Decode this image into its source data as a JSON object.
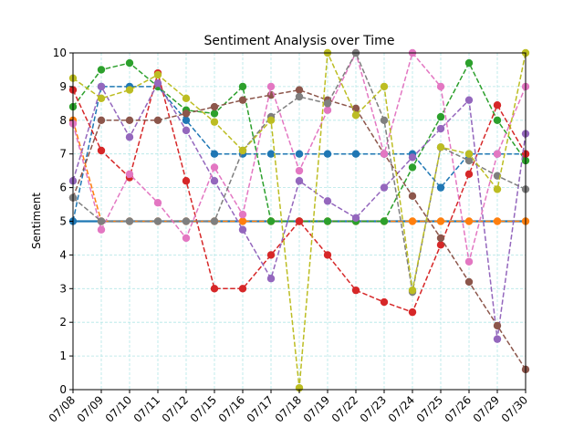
{
  "chart_data": {
    "type": "line",
    "title": "Sentiment Analysis over Time",
    "xlabel": "",
    "ylabel": "Sentiment",
    "ylim": [
      0,
      10
    ],
    "yticks": [
      "0",
      "1",
      "2",
      "3",
      "4",
      "5",
      "6",
      "7",
      "8",
      "9",
      "10"
    ],
    "categories": [
      "07/08",
      "07/09",
      "07/10",
      "07/11",
      "07/12",
      "07/15",
      "07/16",
      "07/17",
      "07/18",
      "07/19",
      "07/22",
      "07/23",
      "07/24",
      "07/25",
      "07/26",
      "07/29",
      "07/30"
    ],
    "grid": true,
    "grid_color": "#b2e6e6",
    "legend": "none",
    "series": [
      {
        "color": "#1f77b4",
        "style": "dashed",
        "marker": true,
        "values": [
          5.0,
          9.0,
          9.0,
          9.0,
          8.0,
          7.0,
          7.0,
          7.0,
          7.0,
          7.0,
          7.0,
          7.0,
          7.0,
          6.0,
          7.0,
          7.0,
          7.0
        ]
      },
      {
        "color": "#1f77b4",
        "style": "solid",
        "marker": false,
        "values": [
          5.0,
          5.0,
          5.0,
          5.0,
          5.0,
          5.0,
          5.0,
          5.0,
          5.0,
          5.0,
          5.0,
          5.0,
          5.0,
          5.0,
          5.0,
          5.0,
          5.0
        ]
      },
      {
        "color": "#ff7f0e",
        "style": "dashed",
        "marker": true,
        "values": [
          8.0,
          5.0,
          5.0,
          5.0,
          5.0,
          5.0,
          5.0,
          5.0,
          5.0,
          5.0,
          5.0,
          5.0,
          5.0,
          5.0,
          5.0,
          5.0,
          5.0
        ]
      },
      {
        "color": "#2ca02c",
        "style": "dashed",
        "marker": true,
        "values": [
          8.4,
          9.5,
          9.7,
          9.0,
          8.3,
          8.2,
          9.0,
          5.0,
          5.0,
          5.0,
          5.0,
          5.0,
          6.6,
          8.1,
          9.7,
          8.0,
          6.8
        ]
      },
      {
        "color": "#d62728",
        "style": "dashed",
        "marker": true,
        "values": [
          8.9,
          7.1,
          6.3,
          9.4,
          6.2,
          3.0,
          3.0,
          4.0,
          5.0,
          4.0,
          2.95,
          2.6,
          2.3,
          4.3,
          6.4,
          8.45,
          7.0
        ]
      },
      {
        "color": "#9467bd",
        "style": "dashed",
        "marker": true,
        "values": [
          6.2,
          9.0,
          7.5,
          9.1,
          7.7,
          6.2,
          4.75,
          3.3,
          6.2,
          5.6,
          5.1,
          6.0,
          6.9,
          7.75,
          8.6,
          1.5,
          7.6
        ]
      },
      {
        "color": "#8c564b",
        "style": "dashed",
        "marker": true,
        "values": [
          5.7,
          8.0,
          8.0,
          8.0,
          8.2,
          8.4,
          8.6,
          8.75,
          8.9,
          8.6,
          8.35,
          7.0,
          5.75,
          4.5,
          3.2,
          1.9,
          0.6
        ]
      },
      {
        "color": "#e377c2",
        "style": "dashed",
        "marker": true,
        "values": [
          7.9,
          4.75,
          6.4,
          5.55,
          4.5,
          6.6,
          5.2,
          9.0,
          6.5,
          8.3,
          10.0,
          7.0,
          10.0,
          9.0,
          3.8,
          7.0,
          9.0
        ]
      },
      {
        "color": "#7f7f7f",
        "style": "dashed",
        "marker": true,
        "values": [
          5.7,
          5.0,
          5.0,
          5.0,
          5.0,
          5.0,
          7.1,
          8.1,
          8.7,
          8.5,
          10.0,
          8.0,
          2.9,
          7.2,
          6.8,
          6.35,
          5.95
        ]
      },
      {
        "color": "#bcbd22",
        "style": "dashed",
        "marker": true,
        "values": [
          9.25,
          8.65,
          8.9,
          9.35,
          8.65,
          7.95,
          7.1,
          8.0,
          0.05,
          10.0,
          8.15,
          9.0,
          2.95,
          7.2,
          7.0,
          5.95,
          10.0
        ]
      }
    ]
  }
}
